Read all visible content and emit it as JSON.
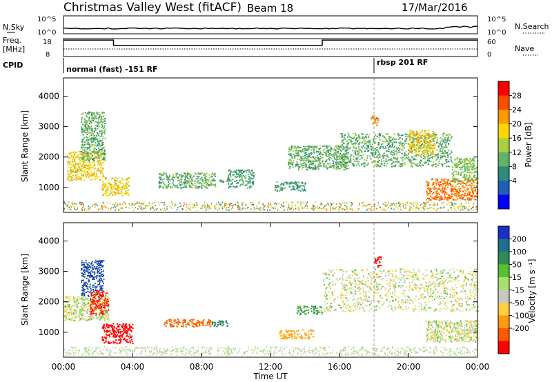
{
  "header": {
    "title": "Christmas Valley West (fitACF)",
    "beam": "Beam 18",
    "date": "17/Mar/2016"
  },
  "top_panels": {
    "nsky_label": "N.Sky",
    "nsky_ticks": [
      "10^5",
      "10^0"
    ],
    "nsearch_label": "N.Search",
    "nsearch_ticks": [
      "10^5",
      "10^0"
    ],
    "freq_label_1": "Freq.",
    "freq_label_2": "[MHz]",
    "freq_ticks": [
      "18",
      "8"
    ],
    "nave_label": "Nave",
    "nave_ticks": [
      "60",
      "0"
    ],
    "cpid_label": "CPID",
    "cpid_1": "normal (fast) -151 RF",
    "cpid_2": "rbsp 201 RF",
    "freq_steps": [
      [
        0,
        17.2
      ],
      [
        2.9,
        14.2
      ],
      [
        15.0,
        17.2
      ],
      [
        24,
        17.2
      ]
    ],
    "cpid_switch_hour": 18.0
  },
  "chart_data": [
    {
      "type": "heatmap",
      "name": "power",
      "ylabel": "Slant Range [km]",
      "xlabel": "",
      "yticks": [
        1000,
        2000,
        3000,
        4000
      ],
      "ylim": [
        180,
        4600
      ],
      "xlim": [
        0,
        24
      ],
      "colorbar": {
        "label": "Power [dB]",
        "ticks": [
          "28",
          "24",
          "20",
          "16",
          "12",
          "8",
          "4"
        ],
        "colors": [
          "#ff0000",
          "#ff4b00",
          "#ff9900",
          "#ffd700",
          "#a8d040",
          "#62b36a",
          "#2e8b7a",
          "#1f5fb8",
          "#0000ff"
        ]
      },
      "regions": [
        {
          "x": [
            0.2,
            2.3
          ],
          "y": [
            1250,
            2200
          ],
          "v": 18
        },
        {
          "x": [
            1.0,
            2.4
          ],
          "y": [
            1900,
            3500
          ],
          "v": 10
        },
        {
          "x": [
            2.2,
            3.8
          ],
          "y": [
            750,
            1350
          ],
          "v": 18
        },
        {
          "x": [
            5.5,
            8.8
          ],
          "y": [
            1000,
            1500
          ],
          "v": 10
        },
        {
          "x": [
            9.0,
            9.5
          ],
          "y": [
            1200,
            1300
          ],
          "v": 8
        },
        {
          "x": [
            9.5,
            11.0
          ],
          "y": [
            1000,
            1600
          ],
          "v": 8
        },
        {
          "x": [
            12.2,
            14.0
          ],
          "y": [
            900,
            1200
          ],
          "v": 8
        },
        {
          "x": [
            13.0,
            16.5
          ],
          "y": [
            1600,
            2400
          ],
          "v": 10
        },
        {
          "x": [
            16.0,
            22.5
          ],
          "y": [
            1700,
            2800
          ],
          "v": 10
        },
        {
          "x": [
            17.8,
            18.2
          ],
          "y": [
            3050,
            3400
          ],
          "v": 22
        },
        {
          "x": [
            20.0,
            21.5
          ],
          "y": [
            2100,
            2900
          ],
          "v": 18
        },
        {
          "x": [
            21.0,
            24.0
          ],
          "y": [
            600,
            1300
          ],
          "v": 24
        },
        {
          "x": [
            22.5,
            24.0
          ],
          "y": [
            1200,
            2000
          ],
          "v": 12
        }
      ]
    },
    {
      "type": "heatmap",
      "name": "velocity",
      "ylabel": "Slant Range [km]",
      "xlabel": "Time UT",
      "yticks": [
        1000,
        2000,
        3000,
        4000
      ],
      "xticks": [
        "00:00",
        "04:00",
        "08:00",
        "12:00",
        "16:00",
        "20:00",
        "00:00"
      ],
      "ylim": [
        180,
        4600
      ],
      "xlim": [
        0,
        24
      ],
      "colorbar": {
        "label": "Velocity [m s⁻¹]",
        "ticks": [
          "200",
          "100",
          "50",
          "15",
          "-15",
          "-50",
          "-100",
          "-200"
        ],
        "colors": [
          "#1a2fc8",
          "#1f6f8f",
          "#2e8b57",
          "#58c030",
          "#a8e070",
          "#c8c8c0",
          "#ffd040",
          "#ff9a10",
          "#ff5a00",
          "#ff0000"
        ]
      },
      "regions": [
        {
          "x": [
            0.0,
            2.6
          ],
          "y": [
            1400,
            2200
          ],
          "v": -5
        },
        {
          "x": [
            1.0,
            2.3
          ],
          "y": [
            2200,
            3400
          ],
          "v": 150
        },
        {
          "x": [
            1.5,
            2.6
          ],
          "y": [
            1600,
            2400
          ],
          "v": -150
        },
        {
          "x": [
            2.2,
            4.0
          ],
          "y": [
            650,
            1300
          ],
          "v": -180
        },
        {
          "x": [
            5.8,
            8.5
          ],
          "y": [
            1200,
            1450
          ],
          "v": -120
        },
        {
          "x": [
            8.5,
            9.5
          ],
          "y": [
            1200,
            1400
          ],
          "v": 60
        },
        {
          "x": [
            12.5,
            14.5
          ],
          "y": [
            800,
            1100
          ],
          "v": -60
        },
        {
          "x": [
            13.5,
            15.0
          ],
          "y": [
            1600,
            1900
          ],
          "v": 30
        },
        {
          "x": [
            15.0,
            24.0
          ],
          "y": [
            1700,
            3100
          ],
          "v": -5
        },
        {
          "x": [
            18.0,
            18.4
          ],
          "y": [
            3150,
            3500
          ],
          "v": -200
        },
        {
          "x": [
            21.0,
            24.0
          ],
          "y": [
            700,
            1400
          ],
          "v": -5
        }
      ]
    }
  ]
}
